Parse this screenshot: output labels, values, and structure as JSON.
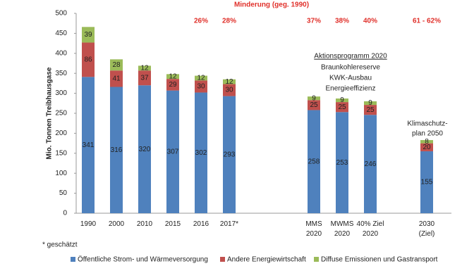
{
  "chart_data": {
    "type": "stacked_bar",
    "title": "Minderung (geg. 1990)",
    "y_label": "Mio. Tonnen Treibhausgase",
    "categories": [
      "1990",
      "2000",
      "2010",
      "2015",
      "2016",
      "2017*",
      null,
      null,
      "MMS\n2020",
      "MWMS\n2020",
      "40% Ziel\n2020",
      null,
      "2030\n(Ziel)"
    ],
    "reduction_labels": [
      null,
      null,
      null,
      null,
      "26%",
      "28%",
      null,
      null,
      "37%",
      "38%",
      "40%",
      null,
      "61 - 62%"
    ],
    "series": [
      {
        "name": "Öffentliche Strom- und Wärmeversorgung",
        "color": "#4f81bd",
        "values": [
          341,
          316,
          320,
          307,
          302,
          293,
          null,
          null,
          258,
          253,
          246,
          null,
          155
        ]
      },
      {
        "name": "Andere Energiewirtschaft",
        "color": "#c0504d",
        "values": [
          86,
          41,
          37,
          29,
          30,
          30,
          null,
          null,
          25,
          25,
          25,
          null,
          20
        ]
      },
      {
        "name": "Diffuse Emissionen und Gastransport",
        "color": "#9bbb59",
        "values": [
          39,
          28,
          12,
          12,
          12,
          12,
          null,
          null,
          9,
          9,
          9,
          null,
          8
        ]
      }
    ],
    "ylim": [
      0,
      500
    ],
    "yticks": [
      0,
      50,
      100,
      150,
      200,
      250,
      300,
      350,
      400,
      450,
      500
    ],
    "annotations": {
      "program_title": "Aktionsprogramm 2020",
      "program_items": [
        "Braunkohlereserve",
        "KWK-Ausbau",
        "Energieeffizienz"
      ],
      "plan": [
        "Klimaschutz-",
        "plan 2050"
      ],
      "footnote": "* geschätzt"
    },
    "legend": "bottom"
  }
}
